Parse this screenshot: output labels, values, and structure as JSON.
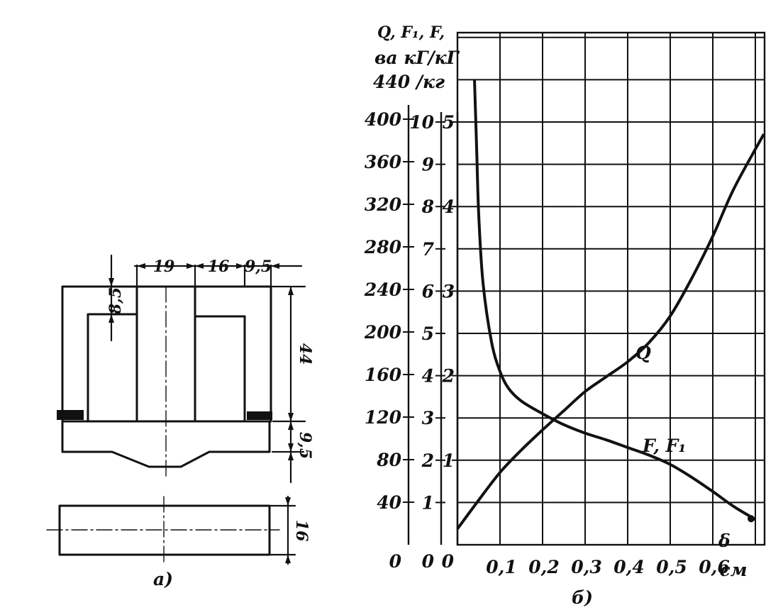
{
  "drawing": {
    "dims": {
      "d19": "19",
      "d16": "16",
      "d9_5_top": "9,5",
      "d8_5": "8,5",
      "d44": "44",
      "d9_5_side": "9,5",
      "d16_side": "16"
    },
    "caption": "a)"
  },
  "chart_data": {
    "type": "line",
    "caption": "б)",
    "header": {
      "line1": "Q,  F₁,  F,",
      "line2": "ва  кГ/кГ",
      "line3": "440  /кг"
    },
    "x": {
      "label": "см",
      "tick_labels": [
        "0",
        "0,1",
        "0,2",
        "0,3",
        "0,4",
        "0,5",
        "0,6"
      ],
      "range": [
        0,
        0.72
      ]
    },
    "axes": [
      {
        "name": "Q",
        "unit": "ва",
        "tick_labels": [
          "0",
          "40",
          "80",
          "120",
          "160",
          "200",
          "240",
          "280",
          "320",
          "360",
          "400"
        ],
        "range": [
          0,
          440
        ]
      },
      {
        "name": "F₁",
        "unit": "кГ",
        "tick_labels": [
          "0",
          "1",
          "2",
          "3",
          "4",
          "5",
          "6",
          "7",
          "8",
          "9",
          "10"
        ],
        "range": [
          0,
          11
        ]
      },
      {
        "name": "F",
        "unit": "кГ",
        "tick_labels": [
          "0",
          "1",
          "2",
          "3",
          "4",
          "5"
        ],
        "range": [
          0,
          5.5
        ]
      }
    ],
    "grid": true,
    "series": [
      {
        "name": "Q",
        "axis": "Q",
        "x": [
          0.0,
          0.05,
          0.1,
          0.15,
          0.2,
          0.25,
          0.3,
          0.35,
          0.4,
          0.45,
          0.5,
          0.55,
          0.6,
          0.65,
          0.72
        ],
        "y": [
          15,
          42,
          68,
          89,
          108,
          126,
          144,
          158,
          172,
          190,
          215,
          250,
          290,
          335,
          386
        ]
      },
      {
        "name": "F, F₁",
        "axis": "F",
        "x": [
          0.04,
          0.045,
          0.05,
          0.06,
          0.08,
          0.1,
          0.12,
          0.15,
          0.2,
          0.25,
          0.3,
          0.35,
          0.4,
          0.45,
          0.5,
          0.55,
          0.6,
          0.65,
          0.7
        ],
        "y": [
          5.5,
          4.7,
          3.9,
          3.1,
          2.4,
          2.05,
          1.85,
          1.7,
          1.55,
          1.42,
          1.32,
          1.24,
          1.15,
          1.06,
          0.95,
          0.8,
          0.63,
          0.45,
          0.3
        ]
      }
    ],
    "annotations": {
      "q": "Q",
      "ff1": "F, F₁",
      "delta": "δ"
    }
  }
}
